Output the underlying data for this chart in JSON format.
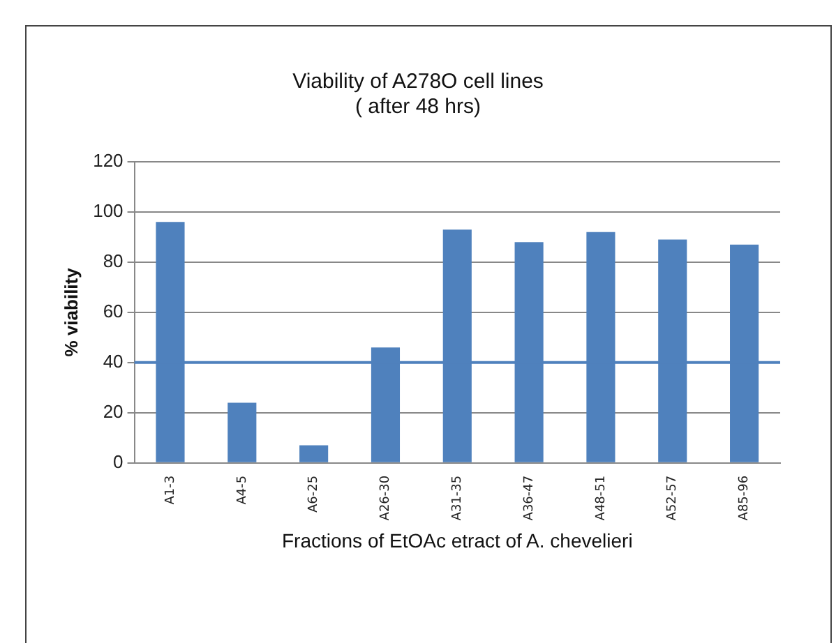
{
  "chart_data": {
    "type": "bar",
    "title": [
      "Viability of A278O cell lines",
      "( after 48 hrs)"
    ],
    "xlabel": "Fractions of EtOAc etract of A. chevelieri",
    "ylabel": "% viability",
    "categories": [
      "A1-3",
      "A4-5",
      "A6-25",
      "A26-30",
      "A31-35",
      "A36-47",
      "A48-51",
      "A52-57",
      "A85-96"
    ],
    "values": [
      96,
      24,
      7,
      46,
      93,
      88,
      92,
      89,
      87
    ],
    "color": "#4f81bd",
    "ylim": [
      0,
      120
    ],
    "yticks": [
      0,
      20,
      40,
      60,
      80,
      100,
      120
    ],
    "grid": "y",
    "ref_lines": [
      {
        "axis": "y",
        "value": 40,
        "color": "#4f81bd"
      }
    ]
  }
}
